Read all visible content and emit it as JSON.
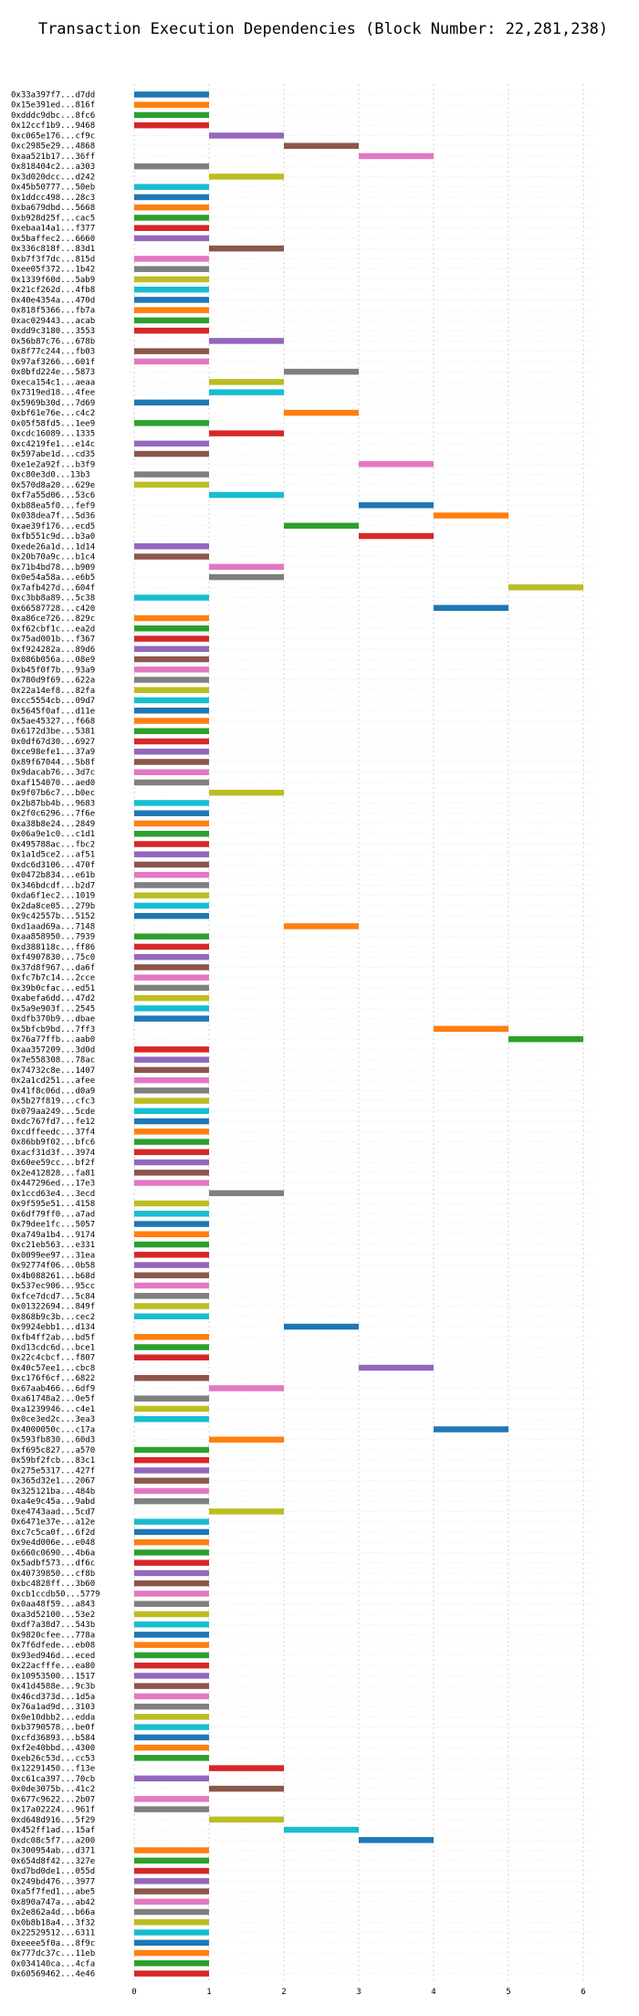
{
  "chart_data": {
    "type": "bar",
    "orientation": "horizontal",
    "title": "Transaction Execution Dependencies (Block Number: 22,281,238)",
    "xlabel": "",
    "ylabel": "",
    "xlim": [
      -0.5,
      6.3
    ],
    "xticks": [
      "0",
      "1",
      "2",
      "3",
      "4",
      "5",
      "6"
    ],
    "grid": true,
    "palette": [
      "#1f77b4",
      "#ff7f0e",
      "#2ca02c",
      "#d62728",
      "#9467bd",
      "#8c564b",
      "#e377c2",
      "#7f7f7f",
      "#bcbd22",
      "#17becf"
    ],
    "bars": [
      {
        "label": "0x33a397f7...d7dd",
        "start": 0
      },
      {
        "label": "0x15e391ed...816f",
        "start": 0
      },
      {
        "label": "0xdddc9dbc...8fc6",
        "start": 0
      },
      {
        "label": "0x12ccf1b9...9468",
        "start": 0
      },
      {
        "label": "0xc065e176...cf9c",
        "start": 1
      },
      {
        "label": "0xc2985e29...4868",
        "start": 2
      },
      {
        "label": "0xaa521b17...36ff",
        "start": 3
      },
      {
        "label": "0x818404c2...a303",
        "start": 0
      },
      {
        "label": "0x3d020dcc...d242",
        "start": 1
      },
      {
        "label": "0x45b50777...50eb",
        "start": 0
      },
      {
        "label": "0x1ddcc498...28c3",
        "start": 0
      },
      {
        "label": "0xba679dbd...5668",
        "start": 0
      },
      {
        "label": "0xb928d25f...cac5",
        "start": 0
      },
      {
        "label": "0xebaa14a1...f377",
        "start": 0
      },
      {
        "label": "0x5baffec2...6660",
        "start": 0
      },
      {
        "label": "0x336c818f...83d1",
        "start": 1
      },
      {
        "label": "0xb7f3f7dc...815d",
        "start": 0
      },
      {
        "label": "0xee05f372...1b42",
        "start": 0
      },
      {
        "label": "0x1339f60d...5ab9",
        "start": 0
      },
      {
        "label": "0x21cf262d...4fb8",
        "start": 0
      },
      {
        "label": "0x40e4354a...470d",
        "start": 0
      },
      {
        "label": "0x818f5366...fb7a",
        "start": 0
      },
      {
        "label": "0xac029443...acab",
        "start": 0
      },
      {
        "label": "0xdd9c3180...3553",
        "start": 0
      },
      {
        "label": "0x56b87c76...678b",
        "start": 1
      },
      {
        "label": "0x8f77c244...fb03",
        "start": 0
      },
      {
        "label": "0x97af3266...601f",
        "start": 0
      },
      {
        "label": "0x0bfd224e...5873",
        "start": 2
      },
      {
        "label": "0xeca154c1...aeaa",
        "start": 1
      },
      {
        "label": "0x7319ed18...4fee",
        "start": 1
      },
      {
        "label": "0x5969b30d...7d69",
        "start": 0
      },
      {
        "label": "0xbf61e76e...c4c2",
        "start": 2
      },
      {
        "label": "0x05f58fd5...1ee9",
        "start": 0
      },
      {
        "label": "0xcdc16089...1335",
        "start": 1
      },
      {
        "label": "0xc4219fe1...e14c",
        "start": 0
      },
      {
        "label": "0x597abe1d...cd35",
        "start": 0
      },
      {
        "label": "0xe1e2a92f...b3f9",
        "start": 3
      },
      {
        "label": "0xc80e3d0...13b3",
        "start": 0
      },
      {
        "label": "0x570d8a20...629e",
        "start": 0
      },
      {
        "label": "0xf7a55d06...53c6",
        "start": 1
      },
      {
        "label": "0xb88ea5f0...fef9",
        "start": 3
      },
      {
        "label": "0x038dea7f...5d36",
        "start": 4
      },
      {
        "label": "0xae39f176...ecd5",
        "start": 2
      },
      {
        "label": "0xfb551c9d...b3a0",
        "start": 3
      },
      {
        "label": "0xede26a1d...1d14",
        "start": 0
      },
      {
        "label": "0x20b70a9c...b1c4",
        "start": 0
      },
      {
        "label": "0x71b4bd78...b909",
        "start": 1
      },
      {
        "label": "0x0e54a58a...e6b5",
        "start": 1
      },
      {
        "label": "0x7afb427d...604f",
        "start": 5
      },
      {
        "label": "0xc3bb8a89...5c38",
        "start": 0
      },
      {
        "label": "0x66587728...c420",
        "start": 4
      },
      {
        "label": "0xa86ce726...829c",
        "start": 0
      },
      {
        "label": "0xf62cbf1c...ea2d",
        "start": 0
      },
      {
        "label": "0x75ad001b...f367",
        "start": 0
      },
      {
        "label": "0xf924282a...89d6",
        "start": 0
      },
      {
        "label": "0x086b056a...08e9",
        "start": 0
      },
      {
        "label": "0xb45f0f7b...93a9",
        "start": 0
      },
      {
        "label": "0x780d9f69...622a",
        "start": 0
      },
      {
        "label": "0x22a14ef8...82fa",
        "start": 0
      },
      {
        "label": "0xcc5554cb...09d7",
        "start": 0
      },
      {
        "label": "0x5645f0af...d11e",
        "start": 0
      },
      {
        "label": "0x5ae45327...f668",
        "start": 0
      },
      {
        "label": "0x6172d3be...5381",
        "start": 0
      },
      {
        "label": "0x0df67d30...6927",
        "start": 0
      },
      {
        "label": "0xce98efe1...37a9",
        "start": 0
      },
      {
        "label": "0x89f67044...5b8f",
        "start": 0
      },
      {
        "label": "0x9dacab76...3d7c",
        "start": 0
      },
      {
        "label": "0xaf154070...aed0",
        "start": 0
      },
      {
        "label": "0x9f07b6c7...b0ec",
        "start": 1
      },
      {
        "label": "0x2b87bb4b...9683",
        "start": 0
      },
      {
        "label": "0x2f0c6296...7f6e",
        "start": 0
      },
      {
        "label": "0xa38b8e24...2849",
        "start": 0
      },
      {
        "label": "0x06a9e1c0...c1d1",
        "start": 0
      },
      {
        "label": "0x495788ac...fbc2",
        "start": 0
      },
      {
        "label": "0x1a1d5ce2...af51",
        "start": 0
      },
      {
        "label": "0xdc6d3106...470f",
        "start": 0
      },
      {
        "label": "0x0472b834...e61b",
        "start": 0
      },
      {
        "label": "0x346bdcdf...b2d7",
        "start": 0
      },
      {
        "label": "0xda6f1ec2...1019",
        "start": 0
      },
      {
        "label": "0x2da8ce05...279b",
        "start": 0
      },
      {
        "label": "0x9c42557b...5152",
        "start": 0
      },
      {
        "label": "0xd1aad69a...7148",
        "start": 2
      },
      {
        "label": "0xaa858950...7939",
        "start": 0
      },
      {
        "label": "0xd388118c...ff86",
        "start": 0
      },
      {
        "label": "0xf4907830...75c0",
        "start": 0
      },
      {
        "label": "0x37d8f967...da6f",
        "start": 0
      },
      {
        "label": "0xfc7b7c14...2cce",
        "start": 0
      },
      {
        "label": "0x39b0cfac...ed51",
        "start": 0
      },
      {
        "label": "0xabefa6dd...47d2",
        "start": 0
      },
      {
        "label": "0x5a9e903f...2545",
        "start": 0
      },
      {
        "label": "0xdfb370b9...dbae",
        "start": 0
      },
      {
        "label": "0x5bfcb9bd...7ff3",
        "start": 4
      },
      {
        "label": "0x76a77ffb...aab0",
        "start": 5
      },
      {
        "label": "0xaa357209...3d0d",
        "start": 0
      },
      {
        "label": "0x7e558308...78ac",
        "start": 0
      },
      {
        "label": "0x74732c8e...1407",
        "start": 0
      },
      {
        "label": "0x2a1cd251...afee",
        "start": 0
      },
      {
        "label": "0x41f8c06d...d0a9",
        "start": 0
      },
      {
        "label": "0x5b27f819...cfc3",
        "start": 0
      },
      {
        "label": "0x079aa249...5cde",
        "start": 0
      },
      {
        "label": "0xdc767fd7...fe12",
        "start": 0
      },
      {
        "label": "0xcdffeedc...37f4",
        "start": 0
      },
      {
        "label": "0x86bb9f02...bfc6",
        "start": 0
      },
      {
        "label": "0xacf31d3f...3974",
        "start": 0
      },
      {
        "label": "0x60ee59cc...bf2f",
        "start": 0
      },
      {
        "label": "0x2e412828...fa81",
        "start": 0
      },
      {
        "label": "0x447296ed...17e3",
        "start": 0
      },
      {
        "label": "0x1ccd63e4...3ecd",
        "start": 1
      },
      {
        "label": "0x9f595e51...4158",
        "start": 0
      },
      {
        "label": "0x6df79ff0...a7ad",
        "start": 0
      },
      {
        "label": "0x79dee1fc...5057",
        "start": 0
      },
      {
        "label": "0xa749a1b4...9174",
        "start": 0
      },
      {
        "label": "0xc21eb563...e331",
        "start": 0
      },
      {
        "label": "0x0099ee97...31ea",
        "start": 0
      },
      {
        "label": "0x92774f06...0b58",
        "start": 0
      },
      {
        "label": "0x4b088261...b68d",
        "start": 0
      },
      {
        "label": "0x537ec906...95cc",
        "start": 0
      },
      {
        "label": "0xfce7dcd7...5c84",
        "start": 0
      },
      {
        "label": "0x01322694...849f",
        "start": 0
      },
      {
        "label": "0x868b9c3b...cec2",
        "start": 0
      },
      {
        "label": "0x9924ebb1...d134",
        "start": 2
      },
      {
        "label": "0xfb4ff2ab...bd5f",
        "start": 0
      },
      {
        "label": "0xd13cdc6d...bce1",
        "start": 0
      },
      {
        "label": "0x22c4cbcf...f807",
        "start": 0
      },
      {
        "label": "0x40c57ee1...cbc8",
        "start": 3
      },
      {
        "label": "0xc176f6cf...6822",
        "start": 0
      },
      {
        "label": "0x67aab466...6df9",
        "start": 1
      },
      {
        "label": "0xa61748a2...0e5f",
        "start": 0
      },
      {
        "label": "0xa1239946...c4e1",
        "start": 0
      },
      {
        "label": "0x0ce3ed2c...3ea3",
        "start": 0
      },
      {
        "label": "0x4000050c...c17a",
        "start": 4
      },
      {
        "label": "0x593fb830...60d3",
        "start": 1
      },
      {
        "label": "0xf695c827...a570",
        "start": 0
      },
      {
        "label": "0x59bf2fcb...83c1",
        "start": 0
      },
      {
        "label": "0x275e5317...427f",
        "start": 0
      },
      {
        "label": "0x365d32e1...2067",
        "start": 0
      },
      {
        "label": "0x325121ba...484b",
        "start": 0
      },
      {
        "label": "0xa4e9c45a...9abd",
        "start": 0
      },
      {
        "label": "0xe4743aad...5cd7",
        "start": 1
      },
      {
        "label": "0x6471e37e...a12e",
        "start": 0
      },
      {
        "label": "0xc7c5ca0f...6f2d",
        "start": 0
      },
      {
        "label": "0x9e4d006e...e048",
        "start": 0
      },
      {
        "label": "0x660c0690...4b6a",
        "start": 0
      },
      {
        "label": "0x5adbf573...df6c",
        "start": 0
      },
      {
        "label": "0x40739850...cf8b",
        "start": 0
      },
      {
        "label": "0xbc4828ff...3b60",
        "start": 0
      },
      {
        "label": "0xcb1ccdb50...5779",
        "start": 0
      },
      {
        "label": "0x0aa48f59...a843",
        "start": 0
      },
      {
        "label": "0xa3d52100...53e2",
        "start": 0
      },
      {
        "label": "0xdf7a38d7...543b",
        "start": 0
      },
      {
        "label": "0x9820cfee...778a",
        "start": 0
      },
      {
        "label": "0x7f6dfede...eb08",
        "start": 0
      },
      {
        "label": "0x93ed946d...eced",
        "start": 0
      },
      {
        "label": "0x22acfffe...ea80",
        "start": 0
      },
      {
        "label": "0x10953500...1517",
        "start": 0
      },
      {
        "label": "0x41d4588e...9c3b",
        "start": 0
      },
      {
        "label": "0x46cd373d...1d5a",
        "start": 0
      },
      {
        "label": "0x76a1ad9d...3103",
        "start": 0
      },
      {
        "label": "0x0e10dbb2...edda",
        "start": 0
      },
      {
        "label": "0xb3790578...be0f",
        "start": 0
      },
      {
        "label": "0xcfd36893...b584",
        "start": 0
      },
      {
        "label": "0xf2e40bbd...4300",
        "start": 0
      },
      {
        "label": "0xeb26c53d...cc53",
        "start": 0
      },
      {
        "label": "0x12291450...f13e",
        "start": 1
      },
      {
        "label": "0xc61ca397...70cb",
        "start": 0
      },
      {
        "label": "0x0de3075b...41c2",
        "start": 1
      },
      {
        "label": "0x677c9622...2b07",
        "start": 0
      },
      {
        "label": "0x17a02224...961f",
        "start": 0
      },
      {
        "label": "0xd648d916...5f29",
        "start": 1
      },
      {
        "label": "0x452ff1ad...15af",
        "start": 2
      },
      {
        "label": "0xdc08c5f7...a200",
        "start": 3
      },
      {
        "label": "0x300954ab...d371",
        "start": 0
      },
      {
        "label": "0x654d8f42...327e",
        "start": 0
      },
      {
        "label": "0xd7bd0de1...055d",
        "start": 0
      },
      {
        "label": "0x249bd476...3977",
        "start": 0
      },
      {
        "label": "0xa5f7fed1...abe5",
        "start": 0
      },
      {
        "label": "0x890a747a...ab42",
        "start": 0
      },
      {
        "label": "0x2e862a4d...b66a",
        "start": 0
      },
      {
        "label": "0x0b8b18a4...3f32",
        "start": 0
      },
      {
        "label": "0x22529512...6311",
        "start": 0
      },
      {
        "label": "0xeeee5f0a...8f9c",
        "start": 0
      },
      {
        "label": "0x777dc37c...11eb",
        "start": 0
      },
      {
        "label": "0x034140ca...4cfa",
        "start": 0
      },
      {
        "label": "0x60569462...4e46",
        "start": 0
      }
    ]
  }
}
